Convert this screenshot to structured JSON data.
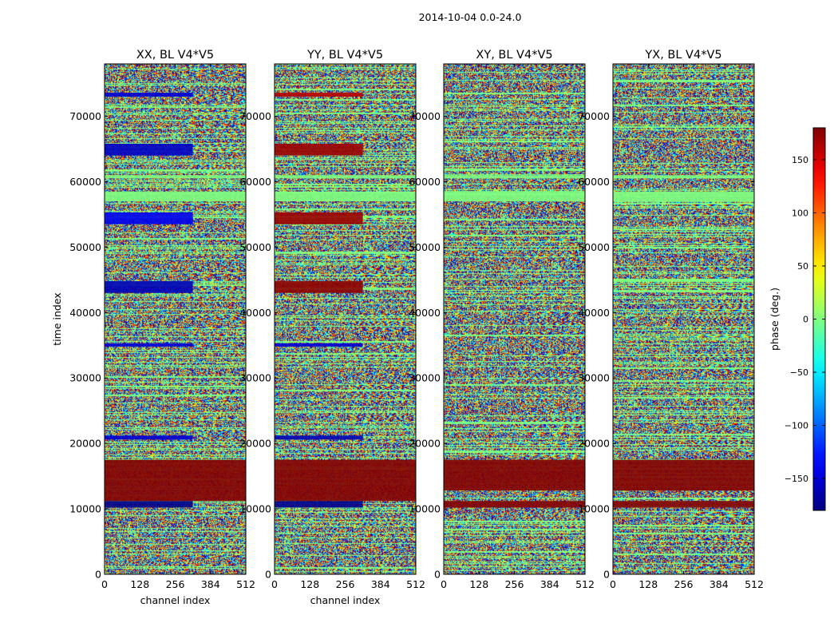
{
  "figure_title": "2014-10-04 0.0-24.0",
  "chart_data": [
    {
      "type": "heatmap",
      "title": "XX, BL V4*V5",
      "xlabel": "channel index",
      "ylabel": "time index",
      "xlim": [
        0,
        512
      ],
      "ylim": [
        0,
        78000
      ],
      "xticks": [
        0,
        128,
        256,
        384,
        512
      ],
      "yticks": [
        0,
        10000,
        20000,
        30000,
        40000,
        50000,
        60000,
        70000
      ],
      "value": "phase (deg.)",
      "features": [
        {
          "t0": 10200,
          "t1": 11200,
          "c0": 0,
          "c1": 320,
          "phase": -175
        },
        {
          "t0": 11200,
          "t1": 17500,
          "c0": 0,
          "c1": 512,
          "phase": 178
        },
        {
          "t0": 20600,
          "t1": 21200,
          "c0": 0,
          "c1": 320,
          "phase": -150
        },
        {
          "t0": 34800,
          "t1": 35300,
          "c0": 0,
          "c1": 320,
          "phase": -150
        },
        {
          "t0": 43000,
          "t1": 44800,
          "c0": 0,
          "c1": 320,
          "phase": -160
        },
        {
          "t0": 53500,
          "t1": 55300,
          "c0": 0,
          "c1": 320,
          "phase": -140
        },
        {
          "t0": 64000,
          "t1": 65800,
          "c0": 0,
          "c1": 320,
          "phase": -155
        },
        {
          "t0": 73000,
          "t1": 73600,
          "c0": 0,
          "c1": 320,
          "phase": -150
        },
        {
          "t0": 57000,
          "t1": 58500,
          "c0": 0,
          "c1": 512,
          "phase": 0
        },
        {
          "t0": 60500,
          "t1": 61000,
          "c0": 0,
          "c1": 512,
          "phase": 0
        }
      ]
    },
    {
      "type": "heatmap",
      "title": "YY, BL V4*V5",
      "xlabel": "channel index",
      "ylabel": "",
      "xlim": [
        0,
        512
      ],
      "ylim": [
        0,
        78000
      ],
      "xticks": [
        0,
        128,
        256,
        384,
        512
      ],
      "yticks": [
        0,
        10000,
        20000,
        30000,
        40000,
        50000,
        60000,
        70000
      ],
      "value": "phase (deg.)",
      "features": [
        {
          "t0": 10200,
          "t1": 11200,
          "c0": 0,
          "c1": 320,
          "phase": -175
        },
        {
          "t0": 11200,
          "t1": 17500,
          "c0": 0,
          "c1": 512,
          "phase": 178
        },
        {
          "t0": 20600,
          "t1": 21200,
          "c0": 0,
          "c1": 320,
          "phase": -160
        },
        {
          "t0": 34800,
          "t1": 35300,
          "c0": 0,
          "c1": 320,
          "phase": -150
        },
        {
          "t0": 43000,
          "t1": 44800,
          "c0": 0,
          "c1": 320,
          "phase": 175
        },
        {
          "t0": 53500,
          "t1": 55300,
          "c0": 0,
          "c1": 320,
          "phase": 170
        },
        {
          "t0": 64000,
          "t1": 65800,
          "c0": 0,
          "c1": 320,
          "phase": 170
        },
        {
          "t0": 73000,
          "t1": 73600,
          "c0": 0,
          "c1": 320,
          "phase": 160
        },
        {
          "t0": 57000,
          "t1": 58500,
          "c0": 0,
          "c1": 512,
          "phase": 0
        },
        {
          "t0": 60500,
          "t1": 61000,
          "c0": 0,
          "c1": 512,
          "phase": 0
        }
      ]
    },
    {
      "type": "heatmap",
      "title": "XY, BL V4*V5",
      "xlabel": "",
      "ylabel": "",
      "xlim": [
        0,
        512
      ],
      "ylim": [
        0,
        78000
      ],
      "xticks": [
        0,
        128,
        256,
        384,
        512
      ],
      "yticks": [
        0,
        10000,
        20000,
        30000,
        40000,
        50000,
        60000,
        70000
      ],
      "value": "phase (deg.)",
      "features": [
        {
          "t0": 10200,
          "t1": 11200,
          "c0": 0,
          "c1": 512,
          "phase": 178
        },
        {
          "t0": 12800,
          "t1": 17500,
          "c0": 0,
          "c1": 512,
          "phase": 178
        },
        {
          "t0": 57000,
          "t1": 58500,
          "c0": 0,
          "c1": 512,
          "phase": 0
        },
        {
          "t0": 60500,
          "t1": 61000,
          "c0": 0,
          "c1": 512,
          "phase": 0
        }
      ]
    },
    {
      "type": "heatmap",
      "title": "YX, BL V4*V5",
      "xlabel": "",
      "ylabel": "",
      "xlim": [
        0,
        512
      ],
      "ylim": [
        0,
        78000
      ],
      "xticks": [
        0,
        128,
        256,
        384,
        512
      ],
      "yticks": [
        0,
        10000,
        20000,
        30000,
        40000,
        50000,
        60000,
        70000
      ],
      "value": "phase (deg.)",
      "features": [
        {
          "t0": 10200,
          "t1": 11200,
          "c0": 0,
          "c1": 512,
          "phase": 178
        },
        {
          "t0": 12800,
          "t1": 17500,
          "c0": 0,
          "c1": 512,
          "phase": 178
        },
        {
          "t0": 57000,
          "t1": 58500,
          "c0": 0,
          "c1": 512,
          "phase": 0
        },
        {
          "t0": 60500,
          "t1": 61000,
          "c0": 0,
          "c1": 512,
          "phase": 0
        }
      ]
    }
  ],
  "colorbar": {
    "label": "phase (deg.)",
    "range": [
      -180,
      180
    ],
    "ticks": [
      -150,
      -100,
      -50,
      0,
      50,
      100,
      150
    ],
    "tick_labels": [
      "−150",
      "−100",
      "−50",
      "0",
      "50",
      "100",
      "150"
    ],
    "colormap": "jet"
  },
  "colors": {
    "background": "#ffffff",
    "axis": "#000000"
  }
}
